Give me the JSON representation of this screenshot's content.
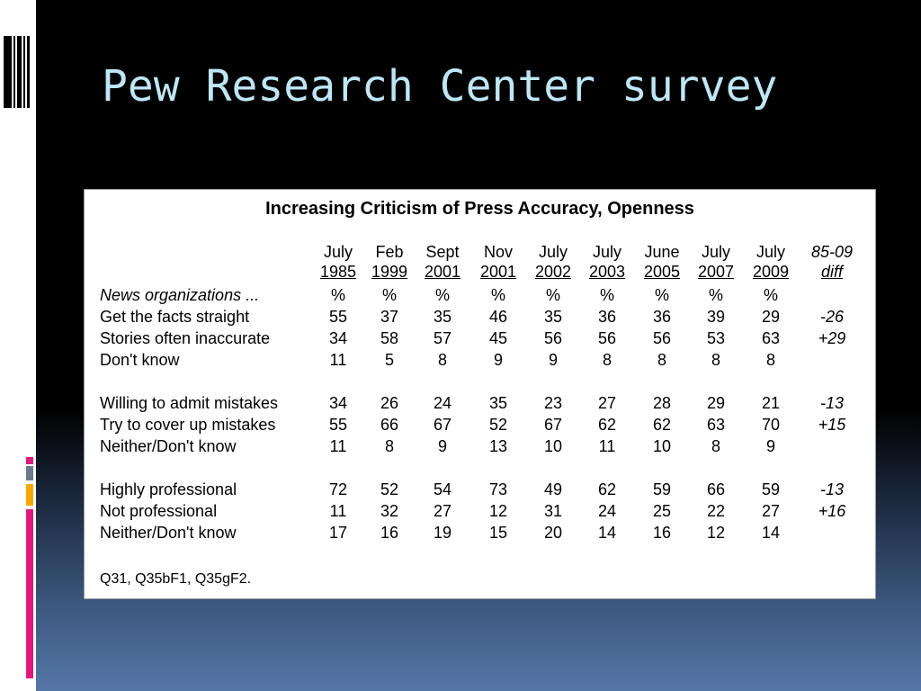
{
  "slide": {
    "title": "Pew Research Center survey"
  },
  "table": {
    "title": "Increasing Criticism of Press Accuracy, Openness",
    "columns": [
      {
        "month": "July",
        "year": "1985"
      },
      {
        "month": "Feb",
        "year": "1999"
      },
      {
        "month": "Sept",
        "year": "2001"
      },
      {
        "month": "Nov",
        "year": "2001"
      },
      {
        "month": "July",
        "year": "2002"
      },
      {
        "month": "July",
        "year": "2003"
      },
      {
        "month": "June",
        "year": "2005"
      },
      {
        "month": "July",
        "year": "2007"
      },
      {
        "month": "July",
        "year": "2009"
      },
      {
        "month": "85-09",
        "year": "diff"
      }
    ],
    "subheader_label": "News organizations ...",
    "percent_symbol": "%",
    "groups": [
      {
        "rows": [
          {
            "label": "Get the facts straight",
            "values": [
              "55",
              "37",
              "35",
              "46",
              "35",
              "36",
              "36",
              "39",
              "29"
            ],
            "diff": "-26"
          },
          {
            "label": "Stories often inaccurate",
            "values": [
              "34",
              "58",
              "57",
              "45",
              "56",
              "56",
              "56",
              "53",
              "63"
            ],
            "diff": "+29"
          },
          {
            "label": "Don't know",
            "values": [
              "11",
              "5",
              "8",
              "9",
              "9",
              "8",
              "8",
              "8",
              "8"
            ],
            "diff": ""
          }
        ]
      },
      {
        "rows": [
          {
            "label": "Willing to admit mistakes",
            "values": [
              "34",
              "26",
              "24",
              "35",
              "23",
              "27",
              "28",
              "29",
              "21"
            ],
            "diff": "-13"
          },
          {
            "label": "Try to cover up mistakes",
            "values": [
              "55",
              "66",
              "67",
              "52",
              "67",
              "62",
              "62",
              "63",
              "70"
            ],
            "diff": "+15"
          },
          {
            "label": "Neither/Don't know",
            "values": [
              "11",
              "8",
              "9",
              "13",
              "10",
              "11",
              "10",
              "8",
              "9"
            ],
            "diff": ""
          }
        ]
      },
      {
        "rows": [
          {
            "label": "Highly professional",
            "values": [
              "72",
              "52",
              "54",
              "73",
              "49",
              "62",
              "59",
              "66",
              "59"
            ],
            "diff": "-13"
          },
          {
            "label": "Not professional",
            "values": [
              "11",
              "32",
              "27",
              "12",
              "31",
              "24",
              "25",
              "22",
              "27"
            ],
            "diff": "+16"
          },
          {
            "label": "Neither/Don't know",
            "values": [
              "17",
              "16",
              "19",
              "15",
              "20",
              "14",
              "16",
              "12",
              "14"
            ],
            "diff": ""
          }
        ]
      }
    ],
    "footnote": "Q31, Q35bF1, Q35gF2."
  },
  "colors": {
    "title_text": "#bfe6f6",
    "accent_magenta": "#e0197d",
    "accent_orange": "#f5a800",
    "accent_gray": "#7a8a9a"
  }
}
